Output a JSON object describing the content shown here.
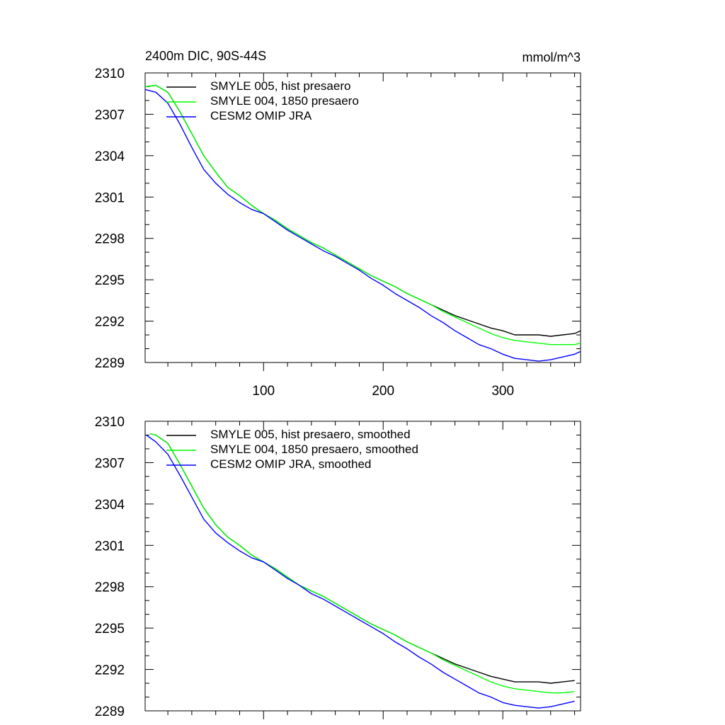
{
  "colors": {
    "black": "#000000",
    "green": "#00ff00",
    "blue": "#0000ff"
  },
  "chart_data": [
    {
      "type": "line",
      "title": "2400m DIC, 90S-44S",
      "units": "mmol/m^3",
      "xlim": [
        1,
        365
      ],
      "ylim": [
        2289,
        2310
      ],
      "yticks": [
        2310,
        2307,
        2304,
        2301,
        2298,
        2295,
        2292,
        2289
      ],
      "xticks": [
        100,
        200,
        300
      ],
      "show_xtick_labels": true,
      "legend_position": "top-left",
      "series": [
        {
          "name": "SMYLE 005, hist presaero",
          "color": "black",
          "x": [
            1,
            10,
            20,
            30,
            40,
            50,
            60,
            70,
            80,
            90,
            100,
            110,
            120,
            130,
            140,
            150,
            160,
            170,
            180,
            190,
            200,
            210,
            220,
            230,
            240,
            250,
            260,
            270,
            280,
            290,
            300,
            310,
            320,
            330,
            340,
            350,
            360,
            365
          ],
          "y": [
            2309.0,
            2309.1,
            2308.6,
            2307.2,
            2305.6,
            2304.0,
            2302.8,
            2301.7,
            2301.1,
            2300.4,
            2299.8,
            2299.3,
            2298.7,
            2298.2,
            2297.7,
            2297.3,
            2296.8,
            2296.3,
            2295.8,
            2295.3,
            2294.9,
            2294.5,
            2294.0,
            2293.6,
            2293.2,
            2292.8,
            2292.4,
            2292.1,
            2291.8,
            2291.5,
            2291.3,
            2291.0,
            2291.0,
            2291.0,
            2290.9,
            2291.0,
            2291.1,
            2291.3
          ]
        },
        {
          "name": "SMYLE 004, 1850 presaero",
          "color": "green",
          "x": [
            1,
            10,
            20,
            30,
            40,
            50,
            60,
            70,
            80,
            90,
            100,
            110,
            120,
            130,
            140,
            150,
            160,
            170,
            180,
            190,
            200,
            210,
            220,
            230,
            240,
            250,
            260,
            270,
            280,
            290,
            300,
            310,
            320,
            330,
            340,
            350,
            360,
            365
          ],
          "y": [
            2309.0,
            2309.1,
            2308.6,
            2307.2,
            2305.6,
            2304.0,
            2302.8,
            2301.7,
            2301.1,
            2300.4,
            2299.8,
            2299.3,
            2298.7,
            2298.2,
            2297.7,
            2297.3,
            2296.8,
            2296.3,
            2295.8,
            2295.3,
            2294.9,
            2294.5,
            2294.0,
            2293.6,
            2293.2,
            2292.7,
            2292.3,
            2291.9,
            2291.5,
            2291.1,
            2290.8,
            2290.6,
            2290.5,
            2290.4,
            2290.3,
            2290.3,
            2290.3,
            2290.4
          ]
        },
        {
          "name": "CESM2 OMIP JRA",
          "color": "blue",
          "x": [
            1,
            10,
            20,
            30,
            40,
            50,
            60,
            70,
            80,
            90,
            100,
            110,
            120,
            130,
            140,
            150,
            160,
            170,
            180,
            190,
            200,
            210,
            220,
            230,
            240,
            250,
            260,
            270,
            280,
            290,
            300,
            310,
            320,
            330,
            340,
            350,
            360,
            365
          ],
          "y": [
            2308.8,
            2308.6,
            2307.8,
            2306.3,
            2304.6,
            2303.0,
            2302.0,
            2301.2,
            2300.6,
            2300.1,
            2299.8,
            2299.2,
            2298.6,
            2298.1,
            2297.6,
            2297.1,
            2296.7,
            2296.2,
            2295.7,
            2295.1,
            2294.6,
            2294.0,
            2293.5,
            2293.0,
            2292.4,
            2291.9,
            2291.3,
            2290.8,
            2290.3,
            2290.0,
            2289.6,
            2289.3,
            2289.2,
            2289.1,
            2289.2,
            2289.4,
            2289.6,
            2289.8
          ]
        }
      ]
    },
    {
      "type": "line",
      "title": "",
      "units": "",
      "xlim": [
        1,
        365
      ],
      "ylim": [
        2289,
        2310
      ],
      "yticks": [
        2310,
        2307,
        2304,
        2301,
        2298,
        2295,
        2292,
        2289
      ],
      "xticks": [
        100,
        200,
        300
      ],
      "show_xtick_labels": false,
      "legend_position": "top-left",
      "series": [
        {
          "name": "SMYLE 005, hist presaero, smoothed",
          "color": "black",
          "x": [
            5,
            10,
            20,
            30,
            40,
            50,
            60,
            70,
            80,
            90,
            100,
            110,
            120,
            130,
            140,
            150,
            160,
            170,
            180,
            190,
            200,
            210,
            220,
            230,
            240,
            250,
            260,
            270,
            280,
            290,
            300,
            310,
            320,
            330,
            340,
            350,
            360
          ],
          "y": [
            2309.1,
            2309.0,
            2308.4,
            2306.9,
            2305.3,
            2303.7,
            2302.5,
            2301.6,
            2301.0,
            2300.3,
            2299.8,
            2299.3,
            2298.7,
            2298.1,
            2297.7,
            2297.3,
            2296.8,
            2296.3,
            2295.8,
            2295.3,
            2294.9,
            2294.5,
            2294.0,
            2293.6,
            2293.2,
            2292.8,
            2292.4,
            2292.1,
            2291.8,
            2291.5,
            2291.3,
            2291.1,
            2291.1,
            2291.1,
            2291.0,
            2291.1,
            2291.2
          ]
        },
        {
          "name": "SMYLE 004, 1850 presaero, smoothed",
          "color": "green",
          "x": [
            5,
            10,
            20,
            30,
            40,
            50,
            60,
            70,
            80,
            90,
            100,
            110,
            120,
            130,
            140,
            150,
            160,
            170,
            180,
            190,
            200,
            210,
            220,
            230,
            240,
            250,
            260,
            270,
            280,
            290,
            300,
            310,
            320,
            330,
            340,
            350,
            360
          ],
          "y": [
            2309.1,
            2309.0,
            2308.4,
            2306.9,
            2305.3,
            2303.7,
            2302.5,
            2301.6,
            2301.0,
            2300.3,
            2299.8,
            2299.3,
            2298.7,
            2298.1,
            2297.7,
            2297.3,
            2296.8,
            2296.3,
            2295.8,
            2295.3,
            2294.9,
            2294.5,
            2294.0,
            2293.6,
            2293.2,
            2292.7,
            2292.3,
            2291.9,
            2291.5,
            2291.1,
            2290.8,
            2290.6,
            2290.5,
            2290.4,
            2290.3,
            2290.3,
            2290.4
          ]
        },
        {
          "name": "CESM2 OMIP JRA, smoothed",
          "color": "blue",
          "x": [
            2,
            10,
            20,
            30,
            40,
            50,
            60,
            70,
            80,
            90,
            100,
            110,
            120,
            130,
            140,
            150,
            160,
            170,
            180,
            190,
            200,
            210,
            220,
            230,
            240,
            250,
            260,
            270,
            280,
            290,
            300,
            310,
            320,
            330,
            340,
            350,
            360
          ],
          "y": [
            2309.0,
            2308.5,
            2307.6,
            2306.1,
            2304.5,
            2302.9,
            2301.9,
            2301.2,
            2300.6,
            2300.1,
            2299.8,
            2299.2,
            2298.6,
            2298.1,
            2297.5,
            2297.1,
            2296.6,
            2296.1,
            2295.6,
            2295.1,
            2294.6,
            2294.0,
            2293.5,
            2292.9,
            2292.4,
            2291.8,
            2291.3,
            2290.8,
            2290.3,
            2290.0,
            2289.6,
            2289.4,
            2289.3,
            2289.2,
            2289.3,
            2289.5,
            2289.7
          ]
        }
      ]
    }
  ]
}
